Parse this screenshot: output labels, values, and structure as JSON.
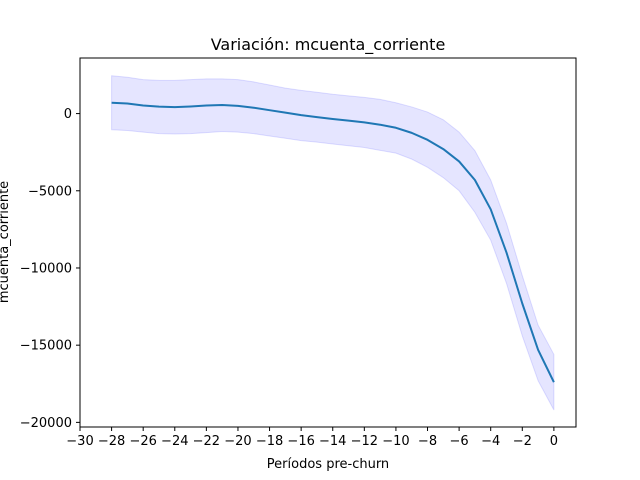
{
  "chart_data": {
    "type": "line",
    "title": "Variación: mcuenta_corriente",
    "xlabel": "Períodos pre-churn",
    "ylabel": "mcuenta_corriente",
    "xlim": [
      -30,
      1.4
    ],
    "ylim": [
      -20300,
      3600
    ],
    "xticks": [
      -30,
      -28,
      -26,
      -24,
      -22,
      -20,
      -18,
      -16,
      -14,
      -12,
      -10,
      -8,
      -6,
      -4,
      -2,
      0
    ],
    "xtick_labels": [
      "−30",
      "−28",
      "−26",
      "−24",
      "−22",
      "−20",
      "−18",
      "−16",
      "−14",
      "−12",
      "−10",
      "−8",
      "−6",
      "−4",
      "−2",
      "0"
    ],
    "yticks": [
      0,
      -5000,
      -10000,
      -15000,
      -20000
    ],
    "ytick_labels": [
      "0",
      "−5000",
      "−10000",
      "−15000",
      "−20000"
    ],
    "grid": false,
    "colors": {
      "line": "#1f77b4",
      "band": "#0000ff"
    },
    "series": [
      {
        "x": [
          -28,
          -27,
          -26,
          -25,
          -24,
          -23,
          -22,
          -21,
          -20,
          -19,
          -18,
          -17,
          -16,
          -15,
          -14,
          -13,
          -12,
          -11,
          -10,
          -9,
          -8,
          -7,
          -6,
          -5,
          -4,
          -3,
          -2,
          -1,
          0
        ],
        "values": [
          700,
          650,
          520,
          450,
          420,
          460,
          520,
          560,
          500,
          380,
          220,
          60,
          -100,
          -230,
          -350,
          -460,
          -570,
          -720,
          -920,
          -1250,
          -1700,
          -2300,
          -3100,
          -4300,
          -6200,
          -9000,
          -12300,
          -15300,
          -17400
        ],
        "upper": [
          2450,
          2350,
          2200,
          2150,
          2150,
          2200,
          2250,
          2250,
          2200,
          2050,
          1850,
          1650,
          1500,
          1380,
          1250,
          1150,
          1050,
          920,
          700,
          430,
          100,
          -400,
          -1200,
          -2400,
          -4300,
          -7100,
          -10500,
          -13700,
          -15600
        ],
        "lower": [
          -1050,
          -1100,
          -1200,
          -1300,
          -1320,
          -1300,
          -1230,
          -1160,
          -1200,
          -1300,
          -1450,
          -1600,
          -1750,
          -1850,
          -1970,
          -2080,
          -2200,
          -2380,
          -2560,
          -2950,
          -3480,
          -4150,
          -5000,
          -6400,
          -8200,
          -11000,
          -14400,
          -17300,
          -19200
        ]
      }
    ]
  }
}
